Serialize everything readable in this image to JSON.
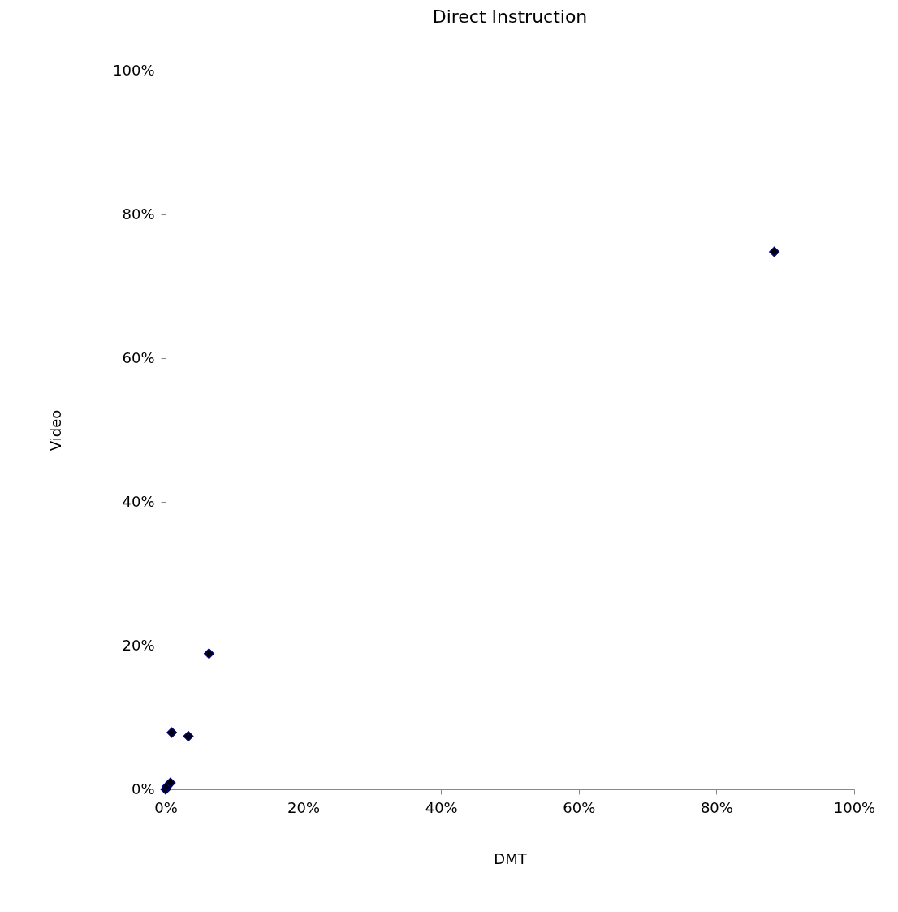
{
  "chart_data": {
    "type": "scatter",
    "title": "Direct Instruction",
    "xlabel": "DMT",
    "ylabel": "Video",
    "x": [
      0,
      0.2,
      0.7,
      0.9,
      3.3,
      6.3,
      88.4
    ],
    "series": [
      {
        "color": "#000080",
        "values": [
          0,
          0.4,
          0.9,
          7.9,
          7.4,
          18.9,
          74.8
        ]
      }
    ],
    "xlim": [
      0,
      100
    ],
    "ylim": [
      0,
      100
    ],
    "xticks": [
      {
        "value": 0,
        "label": "0%"
      },
      {
        "value": 20,
        "label": "20%"
      },
      {
        "value": 40,
        "label": "40%"
      },
      {
        "value": 60,
        "label": "60%"
      },
      {
        "value": 80,
        "label": "80%"
      },
      {
        "value": 100,
        "label": "100%"
      }
    ],
    "yticks": [
      {
        "value": 0,
        "label": "0%"
      },
      {
        "value": 20,
        "label": "20%"
      },
      {
        "value": 40,
        "label": "40%"
      },
      {
        "value": 60,
        "label": "60%"
      },
      {
        "value": 80,
        "label": "80%"
      },
      {
        "value": 100,
        "label": "100%"
      }
    ],
    "grid": false,
    "marker": "diamond"
  }
}
